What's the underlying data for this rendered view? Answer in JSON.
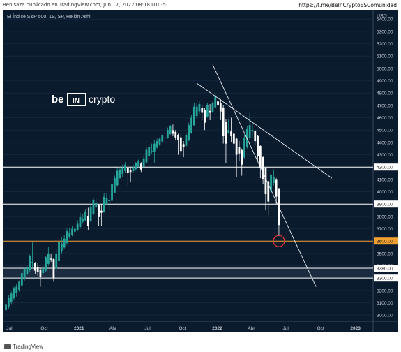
{
  "header": {
    "publisher": "Benlsaza publicado en TradingView.com, Jun 17, 2022 08:18 UTC-5",
    "link": "https://t.me/BeInCryptoESComunidad"
  },
  "footer": {
    "brand": "TradingView"
  },
  "watermark": {
    "brand": "be[IN]crypto",
    "left": "be",
    "box": "IN",
    "right": "crypto"
  },
  "colors": {
    "background": "#0b1b2e",
    "candle_up": "#26a69a",
    "candle_down": "#ffffff",
    "level_white": "#ffffff",
    "level_orange": "#f0a030",
    "circle": "#e53935"
  },
  "chart_data": {
    "type": "candlestick",
    "title": "El Índice S&P 500, 1S, SP, Heikin Ashi",
    "currency": "USD",
    "ylim": [
      2950,
      5475
    ],
    "y_ticks": [
      5400,
      5300,
      5200,
      5100,
      5000,
      4900,
      4800,
      4700,
      4600,
      4500,
      4400,
      4300,
      4200,
      4100,
      4000,
      3900,
      3800,
      3700,
      3600,
      3500,
      3400,
      3300,
      3200,
      3100,
      3000
    ],
    "x_ticks": [
      "Jul",
      "Oct",
      "2021",
      "Abr",
      "Jul",
      "Oct",
      "2022",
      "Abr",
      "Jul",
      "Oct",
      "2023"
    ],
    "levels": [
      {
        "value": 4200.0,
        "label": "4200.00",
        "color": "#ffffff"
      },
      {
        "value": 3900.0,
        "label": "3900.00",
        "color": "#ffffff"
      },
      {
        "value": 3600.0,
        "label": "3600.00",
        "color": "#f0a030"
      },
      {
        "value": 3380.0,
        "label": "3380.00",
        "color": "#ffffff"
      },
      {
        "value": 3300.0,
        "label": "3300.00",
        "color": "#ffffff"
      }
    ],
    "zone": {
      "from": 3300,
      "to": 3380
    },
    "candles": [
      {
        "date": "2020-06-22",
        "o": 3040,
        "h": 3110,
        "l": 3010,
        "c": 3090
      },
      {
        "date": "2020-06-29",
        "o": 3070,
        "h": 3160,
        "l": 3050,
        "c": 3140
      },
      {
        "date": "2020-07-06",
        "o": 3105,
        "h": 3190,
        "l": 3090,
        "c": 3175
      },
      {
        "date": "2020-07-13",
        "o": 3140,
        "h": 3230,
        "l": 3120,
        "c": 3215
      },
      {
        "date": "2020-07-20",
        "o": 3180,
        "h": 3250,
        "l": 3150,
        "c": 3230
      },
      {
        "date": "2020-07-27",
        "o": 3205,
        "h": 3280,
        "l": 3190,
        "c": 3270
      },
      {
        "date": "2020-08-03",
        "o": 3240,
        "h": 3355,
        "l": 3230,
        "c": 3340
      },
      {
        "date": "2020-08-10",
        "o": 3290,
        "h": 3385,
        "l": 3280,
        "c": 3375
      },
      {
        "date": "2020-08-17",
        "o": 3335,
        "h": 3400,
        "l": 3320,
        "c": 3390
      },
      {
        "date": "2020-08-24",
        "o": 3365,
        "h": 3490,
        "l": 3350,
        "c": 3480
      },
      {
        "date": "2020-08-31",
        "o": 3420,
        "h": 3588,
        "l": 3380,
        "c": 3430
      },
      {
        "date": "2020-09-07",
        "o": 3425,
        "h": 3430,
        "l": 3330,
        "c": 3360
      },
      {
        "date": "2020-09-14",
        "o": 3392,
        "h": 3420,
        "l": 3320,
        "c": 3350
      },
      {
        "date": "2020-09-21",
        "o": 3370,
        "h": 3380,
        "l": 3230,
        "c": 3310
      },
      {
        "date": "2020-09-28",
        "o": 3340,
        "h": 3400,
        "l": 3320,
        "c": 3380
      },
      {
        "date": "2020-10-05",
        "o": 3360,
        "h": 3480,
        "l": 3350,
        "c": 3470
      },
      {
        "date": "2020-10-12",
        "o": 3415,
        "h": 3550,
        "l": 3400,
        "c": 3500
      },
      {
        "date": "2020-10-19",
        "o": 3458,
        "h": 3500,
        "l": 3430,
        "c": 3450
      },
      {
        "date": "2020-10-26",
        "o": 3454,
        "h": 3460,
        "l": 3270,
        "c": 3300
      },
      {
        "date": "2020-11-02",
        "o": 3377,
        "h": 3530,
        "l": 3340,
        "c": 3500
      },
      {
        "date": "2020-11-09",
        "o": 3440,
        "h": 3650,
        "l": 3430,
        "c": 3590
      },
      {
        "date": "2020-11-16",
        "o": 3515,
        "h": 3630,
        "l": 3500,
        "c": 3580
      },
      {
        "date": "2020-11-23",
        "o": 3548,
        "h": 3650,
        "l": 3540,
        "c": 3620
      },
      {
        "date": "2020-11-30",
        "o": 3584,
        "h": 3700,
        "l": 3570,
        "c": 3680
      },
      {
        "date": "2020-12-07",
        "o": 3632,
        "h": 3710,
        "l": 3620,
        "c": 3670
      },
      {
        "date": "2020-12-14",
        "o": 3651,
        "h": 3720,
        "l": 3640,
        "c": 3700
      },
      {
        "date": "2020-12-21",
        "o": 3676,
        "h": 3730,
        "l": 3630,
        "c": 3700
      },
      {
        "date": "2020-12-28",
        "o": 3688,
        "h": 3770,
        "l": 3680,
        "c": 3740
      },
      {
        "date": "2021-01-04",
        "o": 3714,
        "h": 3830,
        "l": 3700,
        "c": 3800
      },
      {
        "date": "2021-01-11",
        "o": 3757,
        "h": 3820,
        "l": 3740,
        "c": 3780
      },
      {
        "date": "2021-01-18",
        "o": 3769,
        "h": 3860,
        "l": 3760,
        "c": 3840
      },
      {
        "date": "2021-01-25",
        "o": 3805,
        "h": 3870,
        "l": 3690,
        "c": 3720
      },
      {
        "date": "2021-02-01",
        "o": 3762,
        "h": 3900,
        "l": 3750,
        "c": 3880
      },
      {
        "date": "2021-02-08",
        "o": 3821,
        "h": 3950,
        "l": 3810,
        "c": 3930
      },
      {
        "date": "2021-02-15",
        "o": 3876,
        "h": 3950,
        "l": 3870,
        "c": 3910
      },
      {
        "date": "2021-02-22",
        "o": 3893,
        "h": 3900,
        "l": 3720,
        "c": 3800
      },
      {
        "date": "2021-03-01",
        "o": 3846,
        "h": 3900,
        "l": 3720,
        "c": 3830
      },
      {
        "date": "2021-03-08",
        "o": 3838,
        "h": 3990,
        "l": 3830,
        "c": 3960
      },
      {
        "date": "2021-03-15",
        "o": 3899,
        "h": 3990,
        "l": 3890,
        "c": 3950
      },
      {
        "date": "2021-03-22",
        "o": 3924,
        "h": 3980,
        "l": 3850,
        "c": 3930
      },
      {
        "date": "2021-03-29",
        "o": 3927,
        "h": 4080,
        "l": 3920,
        "c": 4060
      },
      {
        "date": "2021-04-05",
        "o": 3993,
        "h": 4130,
        "l": 3990,
        "c": 4110
      },
      {
        "date": "2021-04-12",
        "o": 4052,
        "h": 4190,
        "l": 4040,
        "c": 4170
      },
      {
        "date": "2021-04-19",
        "o": 4111,
        "h": 4200,
        "l": 4100,
        "c": 4180
      },
      {
        "date": "2021-04-26",
        "o": 4145,
        "h": 4220,
        "l": 4120,
        "c": 4190
      },
      {
        "date": "2021-05-03",
        "o": 4168,
        "h": 4240,
        "l": 4150,
        "c": 4220
      },
      {
        "date": "2021-05-10",
        "o": 4194,
        "h": 4200,
        "l": 4050,
        "c": 4150
      },
      {
        "date": "2021-05-17",
        "o": 4172,
        "h": 4200,
        "l": 4080,
        "c": 4160
      },
      {
        "date": "2021-05-24",
        "o": 4166,
        "h": 4220,
        "l": 4150,
        "c": 4200
      },
      {
        "date": "2021-05-31",
        "o": 4183,
        "h": 4240,
        "l": 4170,
        "c": 4230
      },
      {
        "date": "2021-06-07",
        "o": 4206,
        "h": 4260,
        "l": 4200,
        "c": 4250
      },
      {
        "date": "2021-06-14",
        "o": 4228,
        "h": 4240,
        "l": 4160,
        "c": 4180
      },
      {
        "date": "2021-06-21",
        "o": 4204,
        "h": 4290,
        "l": 4190,
        "c": 4270
      },
      {
        "date": "2021-06-28",
        "o": 4237,
        "h": 4360,
        "l": 4230,
        "c": 4340
      },
      {
        "date": "2021-07-05",
        "o": 4288,
        "h": 4380,
        "l": 4280,
        "c": 4360
      },
      {
        "date": "2021-07-12",
        "o": 4324,
        "h": 4390,
        "l": 4310,
        "c": 4330
      },
      {
        "date": "2021-07-19",
        "o": 4327,
        "h": 4420,
        "l": 4230,
        "c": 4390
      },
      {
        "date": "2021-07-26",
        "o": 4358,
        "h": 4430,
        "l": 4350,
        "c": 4410
      },
      {
        "date": "2021-08-02",
        "o": 4384,
        "h": 4440,
        "l": 4370,
        "c": 4430
      },
      {
        "date": "2021-08-09",
        "o": 4407,
        "h": 4470,
        "l": 4400,
        "c": 4460
      },
      {
        "date": "2021-08-16",
        "o": 4433,
        "h": 4480,
        "l": 4360,
        "c": 4440
      },
      {
        "date": "2021-08-23",
        "o": 4436,
        "h": 4520,
        "l": 4430,
        "c": 4500
      },
      {
        "date": "2021-08-30",
        "o": 4468,
        "h": 4540,
        "l": 4460,
        "c": 4530
      },
      {
        "date": "2021-09-06",
        "o": 4499,
        "h": 4545,
        "l": 4450,
        "c": 4470
      },
      {
        "date": "2021-09-13",
        "o": 4485,
        "h": 4500,
        "l": 4420,
        "c": 4440
      },
      {
        "date": "2021-09-20",
        "o": 4462,
        "h": 4470,
        "l": 4300,
        "c": 4420
      },
      {
        "date": "2021-09-27",
        "o": 4441,
        "h": 4470,
        "l": 4280,
        "c": 4330
      },
      {
        "date": "2021-10-04",
        "o": 4386,
        "h": 4410,
        "l": 4280,
        "c": 4360
      },
      {
        "date": "2021-10-11",
        "o": 4373,
        "h": 4480,
        "l": 4360,
        "c": 4460
      },
      {
        "date": "2021-10-18",
        "o": 4416,
        "h": 4560,
        "l": 4410,
        "c": 4540
      },
      {
        "date": "2021-10-25",
        "o": 4478,
        "h": 4620,
        "l": 4470,
        "c": 4600
      },
      {
        "date": "2021-11-01",
        "o": 4539,
        "h": 4720,
        "l": 4530,
        "c": 4690
      },
      {
        "date": "2021-11-08",
        "o": 4614,
        "h": 4720,
        "l": 4600,
        "c": 4690
      },
      {
        "date": "2021-11-15",
        "o": 4652,
        "h": 4730,
        "l": 4630,
        "c": 4710
      },
      {
        "date": "2021-11-22",
        "o": 4681,
        "h": 4700,
        "l": 4580,
        "c": 4640
      },
      {
        "date": "2021-11-29",
        "o": 4660,
        "h": 4680,
        "l": 4500,
        "c": 4560
      },
      {
        "date": "2021-12-06",
        "o": 4610,
        "h": 4720,
        "l": 4600,
        "c": 4700
      },
      {
        "date": "2021-12-13",
        "o": 4655,
        "h": 4710,
        "l": 4580,
        "c": 4640
      },
      {
        "date": "2021-12-20",
        "o": 4648,
        "h": 4730,
        "l": 4640,
        "c": 4720
      },
      {
        "date": "2021-12-27",
        "o": 4684,
        "h": 4800,
        "l": 4680,
        "c": 4780
      },
      {
        "date": "2022-01-03",
        "o": 4732,
        "h": 4810,
        "l": 4660,
        "c": 4700
      },
      {
        "date": "2022-01-10",
        "o": 4716,
        "h": 4750,
        "l": 4580,
        "c": 4650
      },
      {
        "date": "2022-01-17",
        "o": 4683,
        "h": 4700,
        "l": 4390,
        "c": 4450
      },
      {
        "date": "2022-01-24",
        "o": 4566,
        "h": 4590,
        "l": 4230,
        "c": 4390
      },
      {
        "date": "2022-01-31",
        "o": 4478,
        "h": 4590,
        "l": 4470,
        "c": 4500
      },
      {
        "date": "2022-02-07",
        "o": 4489,
        "h": 4600,
        "l": 4400,
        "c": 4450
      },
      {
        "date": "2022-02-14",
        "o": 4470,
        "h": 4490,
        "l": 4340,
        "c": 4390
      },
      {
        "date": "2022-02-21",
        "o": 4430,
        "h": 4440,
        "l": 4120,
        "c": 4300
      },
      {
        "date": "2022-02-28",
        "o": 4365,
        "h": 4410,
        "l": 4250,
        "c": 4310
      },
      {
        "date": "2022-03-07",
        "o": 4338,
        "h": 4350,
        "l": 4130,
        "c": 4220
      },
      {
        "date": "2022-03-14",
        "o": 4279,
        "h": 4470,
        "l": 4270,
        "c": 4440
      },
      {
        "date": "2022-03-21",
        "o": 4360,
        "h": 4530,
        "l": 4350,
        "c": 4510
      },
      {
        "date": "2022-03-28",
        "o": 4435,
        "h": 4640,
        "l": 4420,
        "c": 4540
      },
      {
        "date": "2022-04-04",
        "o": 4488,
        "h": 4550,
        "l": 4440,
        "c": 4500
      },
      {
        "date": "2022-04-11",
        "o": 4494,
        "h": 4500,
        "l": 4380,
        "c": 4410
      },
      {
        "date": "2022-04-18",
        "o": 4452,
        "h": 4460,
        "l": 4250,
        "c": 4290
      },
      {
        "date": "2022-04-25",
        "o": 4371,
        "h": 4380,
        "l": 4110,
        "c": 4190
      },
      {
        "date": "2022-05-02",
        "o": 4280,
        "h": 4290,
        "l": 4060,
        "c": 4100
      },
      {
        "date": "2022-05-09",
        "o": 4190,
        "h": 4200,
        "l": 3850,
        "c": 3980
      },
      {
        "date": "2022-05-16",
        "o": 4085,
        "h": 4090,
        "l": 3810,
        "c": 3920
      },
      {
        "date": "2022-05-23",
        "o": 4002,
        "h": 4160,
        "l": 3990,
        "c": 4140
      },
      {
        "date": "2022-05-30",
        "o": 4071,
        "h": 4180,
        "l": 4050,
        "c": 4120
      },
      {
        "date": "2022-06-06",
        "o": 4096,
        "h": 4110,
        "l": 3900,
        "c": 3960
      },
      {
        "date": "2022-06-13",
        "o": 4028,
        "h": 4030,
        "l": 3640,
        "c": 3730
      }
    ],
    "trendlines": [
      {
        "from": {
          "date": "2021-11-08",
          "value": 4880
        },
        "to": {
          "date": "2022-10-31",
          "value": 4110
        }
      },
      {
        "from": {
          "date": "2021-12-20",
          "value": 5030
        },
        "to": {
          "date": "2022-09-19",
          "value": 3230
        }
      }
    ],
    "circle": {
      "date": "2022-06-13",
      "value": 3600
    }
  }
}
